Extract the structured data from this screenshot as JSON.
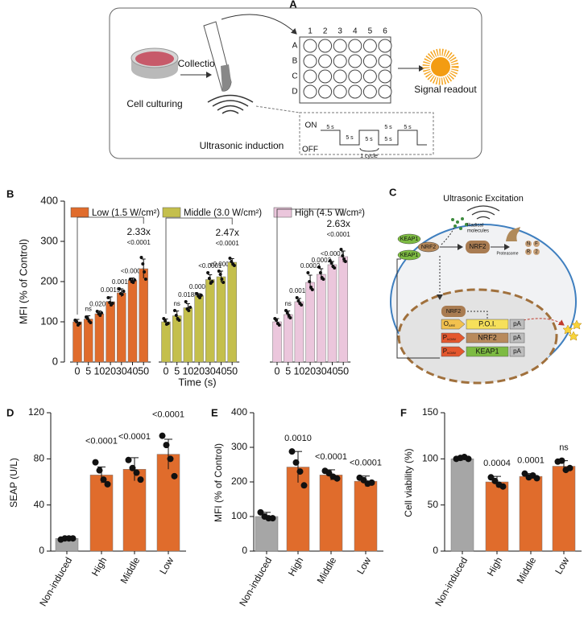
{
  "panel_a": {
    "label": "A",
    "culture": "Cell culturing",
    "collection": "Collection",
    "readout": "Signal readout",
    "induction": "Ultrasonic induction",
    "columns": [
      "1",
      "2",
      "3",
      "4",
      "5",
      "6"
    ],
    "rows": [
      "A",
      "B",
      "C",
      "D"
    ],
    "on": "ON",
    "off": "OFF",
    "pulse_labels": [
      "5 s",
      "5 s",
      "5 s",
      "5 s",
      "5 s",
      "5 s"
    ],
    "cycle": "1 cycle"
  },
  "panel_c": {
    "label": "C",
    "title": "Ultrasonic Excitation",
    "radical": [
      "Radical",
      "molecules"
    ],
    "complex": [
      "KEAP1",
      "NRF2",
      "KEAP1"
    ],
    "free": "NRF2",
    "proteasome": "Proteasome",
    "fragments": [
      "N",
      "F",
      "R",
      "2"
    ],
    "nuclear": "NRF2",
    "cassettes": [
      {
        "promoter": {
          "main": "O",
          "sub": "ARE"
        },
        "gene": "P.O.I.",
        "tail": "pA"
      },
      {
        "promoter": {
          "main": "P",
          "sub": "hCMV"
        },
        "gene": "NRF2",
        "tail": "pA"
      },
      {
        "promoter": {
          "main": "P",
          "sub": "hCMV"
        },
        "gene": "KEAP1",
        "tail": "pA"
      }
    ]
  },
  "chart_data": [
    {
      "type": "bar",
      "panel": "B",
      "ylabel": "MFI (% of Control)",
      "xlabel": "Time (s)",
      "ylim": [
        0,
        400
      ],
      "yticks": [
        0,
        100,
        200,
        300,
        400
      ],
      "categories": [
        0,
        5,
        10,
        20,
        30,
        40,
        50
      ],
      "series": [
        {
          "name": "Low (1.5 W/cm²)",
          "color": "#e06c2c",
          "values": [
            100,
            107,
            120,
            150,
            172,
            203,
            232
          ],
          "errors": [
            6,
            8,
            7,
            12,
            10,
            6,
            24
          ],
          "points": [
            [
              104,
              100,
              92,
              96
            ],
            [
              112,
              108,
              102,
              98
            ],
            [
              126,
              120,
              116,
              122
            ],
            [
              160,
              148,
              142,
              146
            ],
            [
              182,
              170,
              168,
              176
            ],
            [
              206,
              200,
              198,
              204
            ],
            [
              260,
              244,
              224,
              206
            ]
          ],
          "pvalues": [
            null,
            "ns",
            "0.0205",
            "0.0019",
            "0.0011",
            "<0.0001",
            "<0.0001"
          ],
          "fold": "2.33x"
        },
        {
          "name": "Middle (3.0 W/cm²)",
          "color": "#c4bf4c",
          "values": [
            100,
            115,
            135,
            165,
            205,
            212,
            248
          ],
          "errors": [
            7,
            12,
            10,
            5,
            12,
            14,
            9
          ],
          "points": [
            [
              108,
              102,
              94,
              96
            ],
            [
              128,
              116,
              108,
              104
            ],
            [
              150,
              132,
              128,
              136
            ],
            [
              170,
              164,
              160,
              166
            ],
            [
              222,
              208,
              196,
              200
            ],
            [
              226,
              218,
              206,
              198
            ],
            [
              258,
              250,
              244,
              240
            ]
          ],
          "pvalues": [
            null,
            "ns",
            "0.0188",
            "0.0001",
            "<0.0001",
            "<0.0001",
            "<0.0001"
          ],
          "fold": "2.47x"
        },
        {
          "name": "High (4.5 W/cm²)",
          "color": "#ebc6dc",
          "values": [
            100,
            118,
            150,
            198,
            218,
            242,
            262
          ],
          "errors": [
            8,
            9,
            8,
            18,
            14,
            8,
            14
          ],
          "points": [
            [
              108,
              104,
              96,
              92
            ],
            [
              128,
              122,
              116,
              110
            ],
            [
              160,
              152,
              146,
              142
            ],
            [
              222,
              200,
              186,
              180
            ],
            [
              236,
              222,
              210,
              206
            ],
            [
              252,
              246,
              238,
              234
            ],
            [
              280,
              264,
              256,
              250
            ]
          ],
          "pvalues": [
            null,
            "ns",
            "0.0010",
            "0.0002",
            "0.0002",
            "<0.0001",
            "<0.0001"
          ],
          "fold": "2.63x"
        }
      ]
    },
    {
      "type": "bar",
      "panel": "D",
      "ylabel": "SEAP (U/L)",
      "ylim": [
        0,
        120
      ],
      "yticks": [
        0,
        40,
        80,
        120
      ],
      "categories": [
        "Non-induced",
        "High",
        "Middle",
        "Low"
      ],
      "colors": [
        "#a6a6a6",
        "#e06c2c",
        "#e06c2c",
        "#e06c2c"
      ],
      "values": [
        11,
        66,
        71,
        84
      ],
      "errors": [
        1,
        7,
        10,
        13
      ],
      "points": [
        [
          10,
          11,
          11,
          11
        ],
        [
          77,
          70,
          62,
          58
        ],
        [
          79,
          72,
          68,
          62
        ],
        [
          100,
          92,
          80,
          65
        ]
      ],
      "pvalues": [
        null,
        "<0.0001",
        "<0.0001",
        "<0.0001"
      ]
    },
    {
      "type": "bar",
      "panel": "E",
      "ylabel": "MFI (% of Control)",
      "ylim": [
        0,
        400
      ],
      "yticks": [
        0,
        100,
        200,
        300,
        400
      ],
      "categories": [
        "Non-induced",
        "High",
        "Middle",
        "Low"
      ],
      "colors": [
        "#a6a6a6",
        "#e06c2c",
        "#e06c2c",
        "#e06c2c"
      ],
      "values": [
        100,
        243,
        220,
        202
      ],
      "errors": [
        12,
        45,
        15,
        15
      ],
      "points": [
        [
          112,
          100,
          95,
          95
        ],
        [
          288,
          256,
          230,
          190
        ],
        [
          232,
          225,
          215,
          210
        ],
        [
          212,
          205,
          195,
          198
        ]
      ],
      "pvalues": [
        null,
        "0.0010",
        "<0.0001",
        "<0.0001"
      ]
    },
    {
      "type": "bar",
      "panel": "F",
      "ylabel": "Cell viability (%)",
      "ylim": [
        0,
        150
      ],
      "yticks": [
        0,
        50,
        100,
        150
      ],
      "categories": [
        "Non-induced",
        "High",
        "Middle",
        "Low"
      ],
      "colors": [
        "#a6a6a6",
        "#e06c2c",
        "#e06c2c",
        "#e06c2c"
      ],
      "values": [
        100,
        75,
        81,
        92
      ],
      "errors": [
        2,
        6,
        3,
        6
      ],
      "points": [
        [
          100,
          101,
          102,
          100
        ],
        [
          80,
          76,
          72,
          70
        ],
        [
          84,
          80,
          82,
          79
        ],
        [
          97,
          98,
          88,
          90
        ]
      ],
      "pvalues": [
        null,
        "0.0004",
        "0.0001",
        "ns"
      ]
    }
  ]
}
